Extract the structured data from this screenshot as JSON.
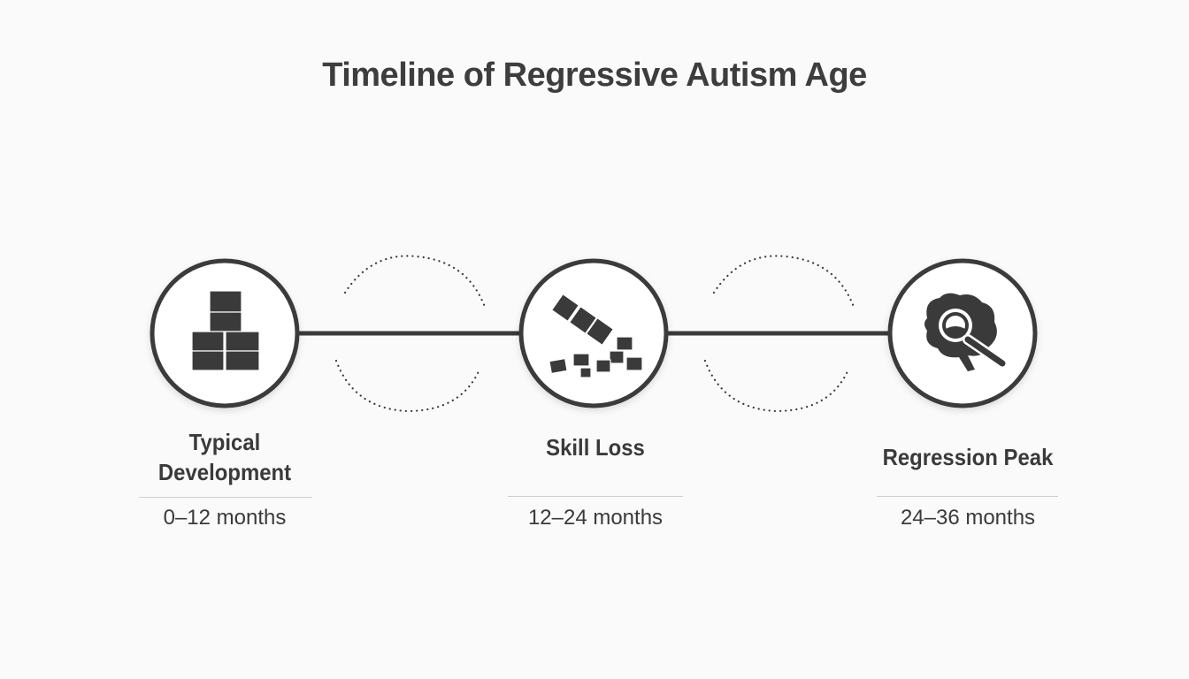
{
  "title": "Timeline of Regressive Autism Age",
  "colors": {
    "stroke": "#3a3a3a",
    "background": "#fafafa",
    "divider": "#cfcfcf"
  },
  "stages": [
    {
      "label": "Typical Development",
      "range": "0–12 months",
      "icon": "stacked-blocks-icon"
    },
    {
      "label": "Skill Loss",
      "range": "12–24 months",
      "icon": "falling-blocks-icon"
    },
    {
      "label": "Regression Peak",
      "range": "24–36 months",
      "icon": "brain-magnifier-icon"
    }
  ]
}
